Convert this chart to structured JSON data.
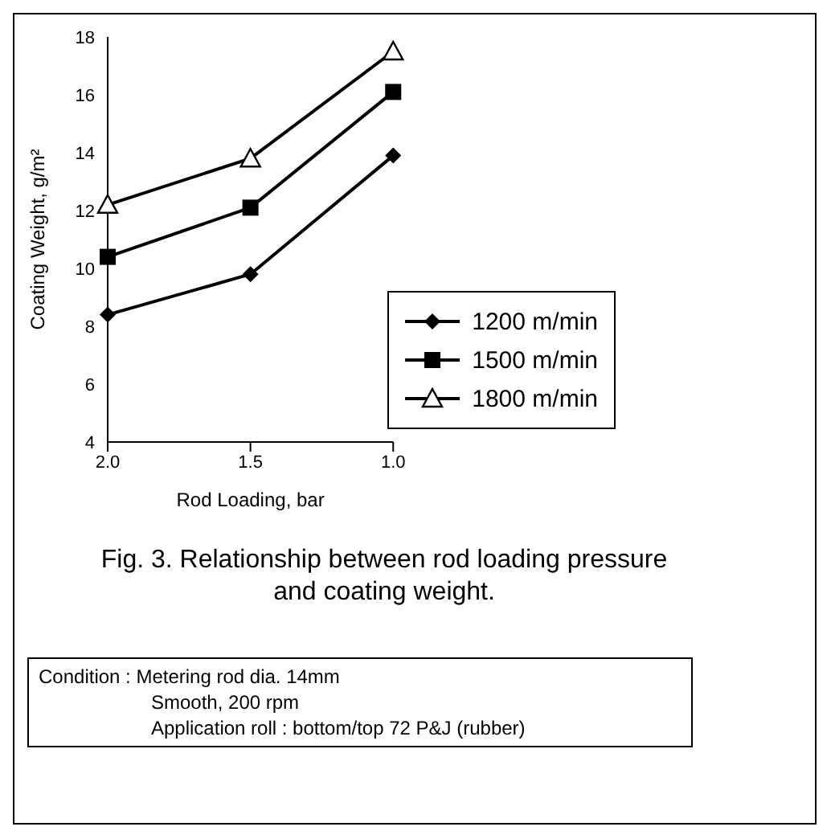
{
  "chart_data": {
    "type": "line",
    "xlabel": "Rod Loading, bar",
    "ylabel": "Coating Weight, g/m²",
    "categories": [
      "2.0",
      "1.5",
      "1.0"
    ],
    "series": [
      {
        "name": "1200 m/min",
        "color": "#000000",
        "marker": "diamond",
        "values": [
          8.4,
          9.8,
          13.9
        ]
      },
      {
        "name": "1500 m/min",
        "color": "#000000",
        "marker": "square",
        "values": [
          10.4,
          12.1,
          16.1
        ]
      },
      {
        "name": "1800 m/min",
        "color": "#000000",
        "marker": "triangle",
        "values": [
          12.2,
          13.8,
          17.5
        ]
      }
    ],
    "ylim": [
      4,
      18
    ],
    "yticks": [
      4,
      6,
      8,
      10,
      12,
      14,
      16,
      18
    ],
    "grid": false,
    "legend": "bottom right",
    "line_style": "solid",
    "annotations": [
      "Fig. 3. Relationship between rod loading pressure and coating weight.",
      "Condition : Metering rod dia. 14mm",
      "Smooth, 200 rpm",
      "Application roll : bottom/top 72 P&J (rubber)"
    ]
  }
}
